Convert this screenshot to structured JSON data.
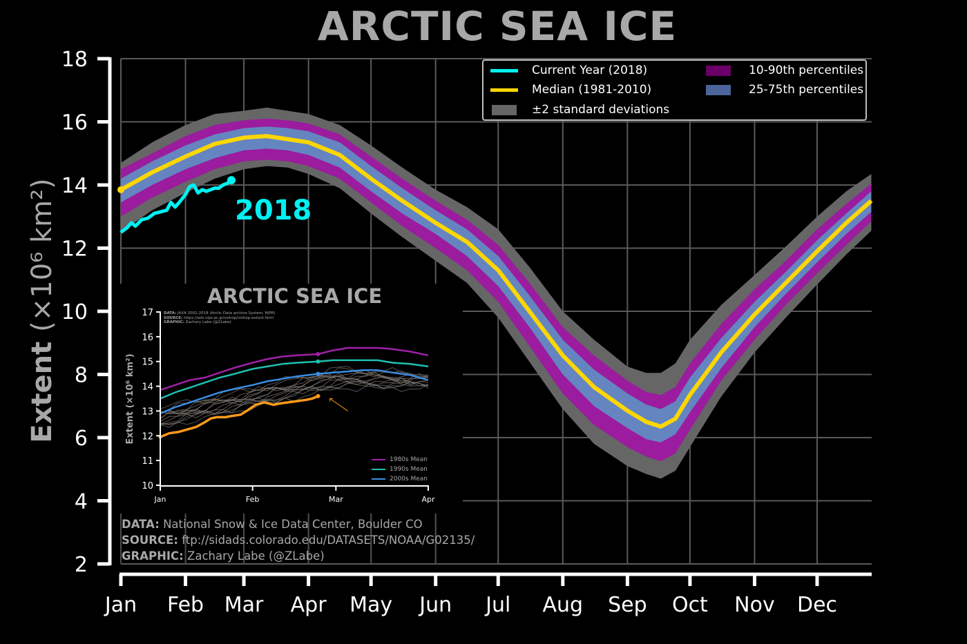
{
  "chart_data": [
    {
      "id": "main",
      "type": "area",
      "title": "ARCTIC SEA ICE",
      "ylabel_main": "Extent",
      "ylabel_units": "(×10⁶ km²)",
      "ylim": [
        2,
        18
      ],
      "yticks": [
        "2",
        "4",
        "6",
        "8",
        "10",
        "12",
        "14",
        "16",
        "18"
      ],
      "ytick_values": [
        2,
        4,
        6,
        8,
        10,
        12,
        14,
        16,
        18
      ],
      "xticks": [
        "Jan",
        "Feb",
        "Mar",
        "Apr",
        "May",
        "Jun",
        "Jul",
        "Aug",
        "Sep",
        "Oct",
        "Nov",
        "Dec"
      ],
      "xtick_days": [
        0,
        31,
        59,
        90,
        120,
        151,
        181,
        212,
        243,
        273,
        304,
        334
      ],
      "xlim_days": [
        0,
        360
      ],
      "grid": true,
      "legend_position": "top-right",
      "x_days": [
        0,
        15,
        31,
        45,
        59,
        70,
        80,
        90,
        105,
        120,
        135,
        151,
        166,
        181,
        196,
        212,
        227,
        243,
        252,
        259,
        266,
        273,
        288,
        304,
        319,
        334,
        348,
        360
      ],
      "series": [
        {
          "name": "Median (1981-2010)",
          "color": "#ffd700",
          "values": [
            13.85,
            14.4,
            14.9,
            15.3,
            15.5,
            15.55,
            15.45,
            15.35,
            14.95,
            14.2,
            13.5,
            12.8,
            12.2,
            11.3,
            10.0,
            8.6,
            7.6,
            6.85,
            6.5,
            6.35,
            6.6,
            7.35,
            8.7,
            9.9,
            10.9,
            11.9,
            12.8,
            13.5
          ]
        },
        {
          "name": "25th percentile",
          "values": [
            13.45,
            14.0,
            14.5,
            14.85,
            15.1,
            15.15,
            15.1,
            14.95,
            14.55,
            13.8,
            13.1,
            12.45,
            11.75,
            10.8,
            9.5,
            8.0,
            7.0,
            6.3,
            5.95,
            5.85,
            6.1,
            6.8,
            8.2,
            9.5,
            10.55,
            11.55,
            12.45,
            13.15
          ]
        },
        {
          "name": "75th percentile",
          "values": [
            14.2,
            14.75,
            15.25,
            15.6,
            15.8,
            15.85,
            15.8,
            15.7,
            15.35,
            14.6,
            13.9,
            13.2,
            12.6,
            11.75,
            10.5,
            9.1,
            8.15,
            7.4,
            7.05,
            6.9,
            7.15,
            7.9,
            9.15,
            10.3,
            11.25,
            12.25,
            13.1,
            13.8
          ]
        },
        {
          "name": "10th percentile",
          "values": [
            13.0,
            13.6,
            14.1,
            14.5,
            14.75,
            14.8,
            14.75,
            14.6,
            14.2,
            13.45,
            12.7,
            12.0,
            11.3,
            10.3,
            8.9,
            7.4,
            6.4,
            5.7,
            5.4,
            5.25,
            5.5,
            6.25,
            7.8,
            9.1,
            10.2,
            11.2,
            12.1,
            12.85
          ]
        },
        {
          "name": "90th percentile",
          "values": [
            14.5,
            15.0,
            15.55,
            15.9,
            16.05,
            16.1,
            16.05,
            15.95,
            15.6,
            14.9,
            14.2,
            13.5,
            12.9,
            12.1,
            10.9,
            9.5,
            8.6,
            7.8,
            7.45,
            7.35,
            7.6,
            8.35,
            9.6,
            10.7,
            11.6,
            12.6,
            13.4,
            14.05
          ]
        },
        {
          "name": "-2 standard deviations",
          "values": [
            12.5,
            13.2,
            13.75,
            14.2,
            14.5,
            14.6,
            14.55,
            14.35,
            13.9,
            13.1,
            12.35,
            11.6,
            10.9,
            9.8,
            8.4,
            6.9,
            5.8,
            5.1,
            4.85,
            4.7,
            4.95,
            5.7,
            7.3,
            8.7,
            9.8,
            10.85,
            11.8,
            12.55
          ]
        },
        {
          "name": "+2 standard deviations",
          "values": [
            14.7,
            15.35,
            15.9,
            16.25,
            16.35,
            16.45,
            16.35,
            16.25,
            15.9,
            15.25,
            14.55,
            13.85,
            13.3,
            12.6,
            11.4,
            10.0,
            9.1,
            8.25,
            8.05,
            8.05,
            8.35,
            9.1,
            10.2,
            11.15,
            12.05,
            13.0,
            13.8,
            14.35
          ]
        },
        {
          "name": "Current Year (2018)",
          "color": "#00f2f2",
          "x_days": [
            0,
            3,
            5,
            7,
            10,
            13,
            16,
            19,
            22,
            24,
            26,
            28,
            31,
            33,
            35,
            37,
            39,
            41,
            43,
            45,
            47,
            49,
            51,
            53
          ],
          "values": [
            12.5,
            12.65,
            12.8,
            12.7,
            12.9,
            12.95,
            13.1,
            13.15,
            13.2,
            13.45,
            13.3,
            13.45,
            13.7,
            13.95,
            14.0,
            13.75,
            13.85,
            13.8,
            13.85,
            13.9,
            13.9,
            14.0,
            14.05,
            14.15
          ]
        }
      ],
      "legend": {
        "current_year": "Current Year (2018)",
        "median": "Median (1981-2010)",
        "std": "±2 standard deviations",
        "p10_90": "10-90th percentiles",
        "p25_75": "25-75th percentiles"
      },
      "annotation": "2018",
      "colors": {
        "current": "#00f2f2",
        "median": "#ffd700",
        "p10_90": "#9b1c9e",
        "p25_75": "#6585c0",
        "std": "#666666",
        "legend_p10_90": "#6a0067",
        "legend_p25_75": "#4b6499"
      },
      "footer": {
        "data_label": "DATA:",
        "data_text": " National Snow & Ice Data Center, Boulder CO",
        "source_label": "SOURCE:",
        "source_text": " ftp://sidads.colorado.edu/DATASETS/NOAA/G02135/",
        "graphic_label": "GRAPHIC:",
        "graphic_text": " Zachary Labe (@ZLabe)"
      }
    },
    {
      "id": "inset",
      "type": "line",
      "title": "ARCTIC SEA ICE",
      "ylabel": "Extent (×10⁶ km²)",
      "ylim": [
        10,
        17
      ],
      "yticks": [
        "10",
        "11",
        "12",
        "13",
        "14",
        "15",
        "16",
        "17"
      ],
      "ytick_values": [
        10,
        11,
        12,
        13,
        14,
        15,
        16,
        17
      ],
      "xticks": [
        "Jan",
        "Feb",
        "Mar",
        "Apr"
      ],
      "xtick_days": [
        0,
        31,
        59,
        90
      ],
      "meta": {
        "data_label": "DATA:",
        "data_text": " JAXA 2002-2018 (Arctic Data archive System, NIPR)",
        "source_label": "SOURCE:",
        "source_text": " https://ads.nipr.ac.jp/vishop/vishop-extent.html",
        "graphic_label": "GRAPHIC:",
        "graphic_text": " Zachary Labe (@ZLabe)"
      },
      "x_days": [
        0,
        5,
        10,
        15,
        20,
        25,
        31,
        36,
        41,
        46,
        53,
        58,
        63,
        68,
        73,
        78,
        84,
        90
      ],
      "series": [
        {
          "name": "1980s Mean",
          "color": "#a020a8",
          "values": [
            13.85,
            14.05,
            14.25,
            14.35,
            14.55,
            14.75,
            14.95,
            15.1,
            15.2,
            15.25,
            15.3,
            15.45,
            15.55,
            15.55,
            15.55,
            15.5,
            15.4,
            15.25
          ]
        },
        {
          "name": "1990s Mean",
          "color": "#1ec0b0",
          "values": [
            13.5,
            13.75,
            13.95,
            14.15,
            14.35,
            14.5,
            14.7,
            14.8,
            14.9,
            14.95,
            15.0,
            15.05,
            15.05,
            15.05,
            15.05,
            14.95,
            14.9,
            14.8
          ]
        },
        {
          "name": "2000s Mean",
          "color": "#3a8ee8",
          "values": [
            12.9,
            13.15,
            13.35,
            13.55,
            13.75,
            13.9,
            14.05,
            14.2,
            14.3,
            14.4,
            14.5,
            14.55,
            14.6,
            14.65,
            14.65,
            14.55,
            14.45,
            14.25
          ]
        },
        {
          "name": "2018",
          "color": "#ff9a1a",
          "x_days": [
            0,
            3,
            6,
            9,
            12,
            15,
            17,
            19,
            22,
            24,
            27,
            29,
            32,
            35,
            38,
            40,
            43,
            46,
            49,
            51,
            53
          ],
          "values": [
            11.95,
            12.1,
            12.15,
            12.25,
            12.35,
            12.55,
            12.7,
            12.75,
            12.75,
            12.8,
            12.85,
            13.0,
            13.25,
            13.35,
            13.25,
            13.3,
            13.35,
            13.4,
            13.45,
            13.5,
            13.6
          ]
        }
      ],
      "legend": [
        "1980s Mean",
        "1990s Mean",
        "2000s Mean"
      ]
    }
  ]
}
